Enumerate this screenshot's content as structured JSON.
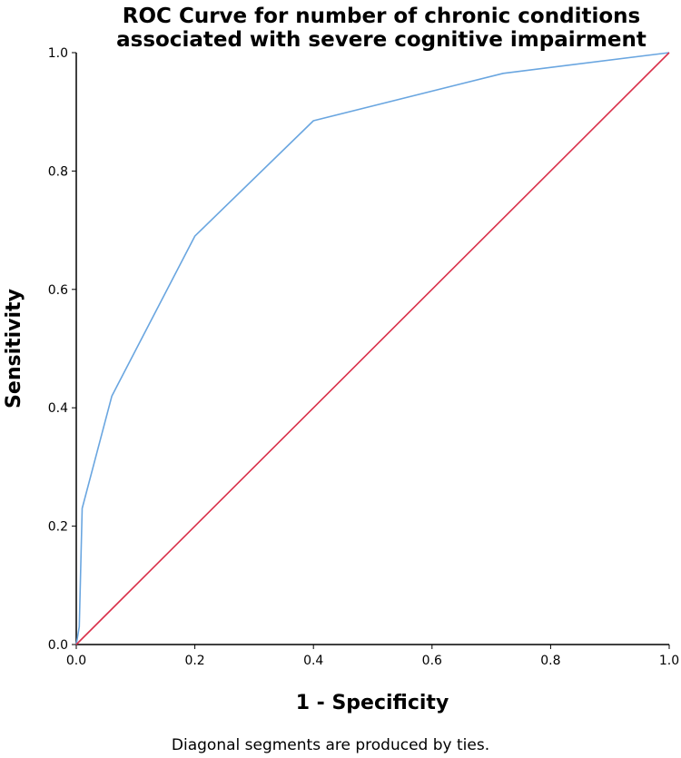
{
  "chart_data": {
    "type": "line",
    "title_lines": [
      "ROC Curve for number of chronic conditions",
      "associated with severe cognitive impairment"
    ],
    "xlabel": "1 - Specificity",
    "ylabel": "Sensitivity",
    "footnote": "Diagonal segments are produced by ties.",
    "xlim": [
      0,
      1
    ],
    "ylim": [
      0,
      1
    ],
    "xticks": [
      "0.0",
      "0.2",
      "0.4",
      "0.6",
      "0.8",
      "1.0"
    ],
    "yticks": [
      "0.0",
      "0.2",
      "0.4",
      "0.6",
      "0.8",
      "1.0"
    ],
    "grid": false,
    "series": [
      {
        "color": "#6aa6e0",
        "x": [
          0,
          0.005,
          0.01,
          0.06,
          0.2,
          0.4,
          0.72,
          1.0
        ],
        "y": [
          0,
          0.03,
          0.23,
          0.42,
          0.69,
          0.885,
          0.965,
          1.0
        ]
      },
      {
        "color": "#d9304a",
        "x": [
          0,
          1
        ],
        "y": [
          0,
          1
        ]
      }
    ]
  }
}
